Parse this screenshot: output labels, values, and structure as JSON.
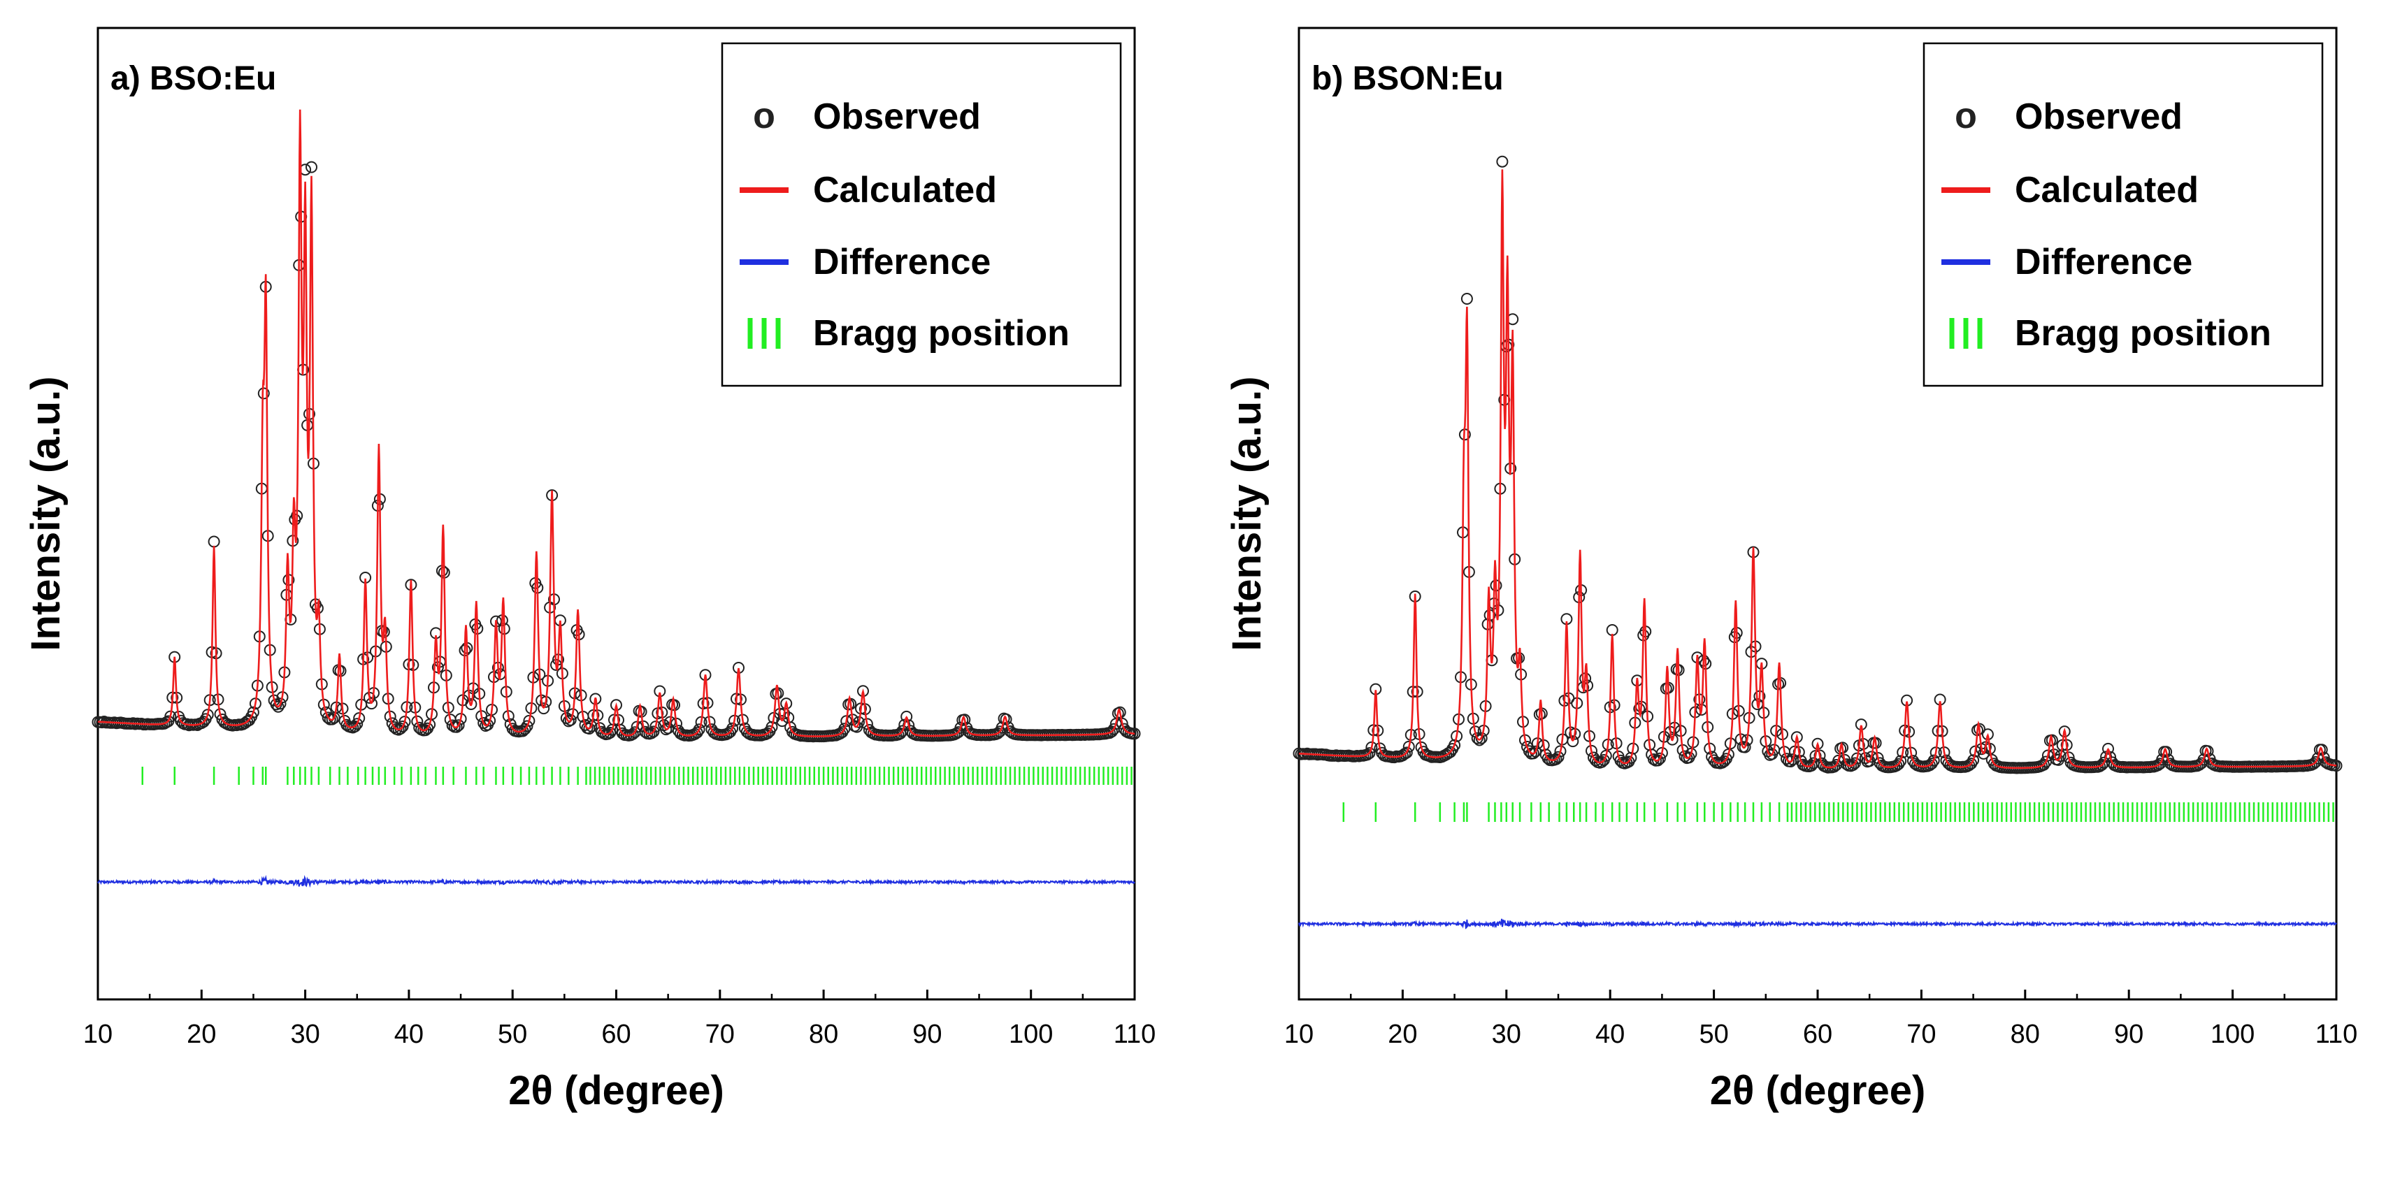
{
  "colors": {
    "observed": "#222222",
    "calculated": "#ee1c1c",
    "difference": "#1f2fe0",
    "bragg": "#22ee22",
    "axis": "#000000"
  },
  "legend": {
    "observed_marker": "o",
    "observed": "Observed",
    "calculated": "Calculated",
    "difference": "Difference",
    "bragg": "Bragg position"
  },
  "chart_data": [
    {
      "type": "line",
      "panel_label": "a) BSO:Eu",
      "xlabel": "2θ (degree)",
      "ylabel": "Intensity (a.u.)",
      "xlim": [
        10,
        110
      ],
      "xticks": [
        10,
        20,
        30,
        40,
        50,
        60,
        70,
        80,
        90,
        100,
        110
      ],
      "y_ticks_shown": false,
      "grid": false,
      "legend_position": "top-right",
      "series": [
        {
          "name": "Observed",
          "style": "open circles"
        },
        {
          "name": "Calculated",
          "style": "line"
        },
        {
          "name": "Difference",
          "style": "line",
          "offset": -0.33
        },
        {
          "name": "Bragg position",
          "style": "ticks",
          "offset": -0.08
        }
      ],
      "background_intensity": [
        [
          10,
          0.03
        ],
        [
          40,
          0.0
        ],
        [
          110,
          0.01
        ]
      ],
      "peaks": [
        {
          "x": 17.4,
          "y": 0.11
        },
        {
          "x": 21.2,
          "y": 0.29
        },
        {
          "x": 25.9,
          "y": 0.38
        },
        {
          "x": 26.2,
          "y": 0.63
        },
        {
          "x": 28.3,
          "y": 0.23
        },
        {
          "x": 28.9,
          "y": 0.26
        },
        {
          "x": 29.5,
          "y": 0.87
        },
        {
          "x": 30.0,
          "y": 0.71
        },
        {
          "x": 30.6,
          "y": 0.8
        },
        {
          "x": 31.3,
          "y": 0.14
        },
        {
          "x": 33.3,
          "y": 0.12
        },
        {
          "x": 35.8,
          "y": 0.24
        },
        {
          "x": 37.1,
          "y": 0.45
        },
        {
          "x": 37.7,
          "y": 0.15
        },
        {
          "x": 40.2,
          "y": 0.25
        },
        {
          "x": 42.6,
          "y": 0.14
        },
        {
          "x": 43.3,
          "y": 0.33
        },
        {
          "x": 45.5,
          "y": 0.17
        },
        {
          "x": 46.5,
          "y": 0.21
        },
        {
          "x": 48.4,
          "y": 0.17
        },
        {
          "x": 49.1,
          "y": 0.21
        },
        {
          "x": 52.3,
          "y": 0.29
        },
        {
          "x": 53.8,
          "y": 0.38
        },
        {
          "x": 54.6,
          "y": 0.16
        },
        {
          "x": 56.3,
          "y": 0.2
        },
        {
          "x": 58.0,
          "y": 0.06
        },
        {
          "x": 60.0,
          "y": 0.05
        },
        {
          "x": 62.3,
          "y": 0.05
        },
        {
          "x": 64.2,
          "y": 0.07
        },
        {
          "x": 65.5,
          "y": 0.06
        },
        {
          "x": 68.6,
          "y": 0.1
        },
        {
          "x": 71.8,
          "y": 0.11
        },
        {
          "x": 75.5,
          "y": 0.08
        },
        {
          "x": 76.4,
          "y": 0.05
        },
        {
          "x": 82.5,
          "y": 0.06
        },
        {
          "x": 83.8,
          "y": 0.07
        },
        {
          "x": 88.0,
          "y": 0.03
        },
        {
          "x": 93.5,
          "y": 0.03
        },
        {
          "x": 97.5,
          "y": 0.03
        },
        {
          "x": 108.5,
          "y": 0.04
        }
      ],
      "bragg_positions": [
        14.3,
        17.4,
        21.2,
        23.6,
        25.0,
        25.9,
        26.2,
        28.3,
        28.9,
        29.5,
        30.0,
        30.6,
        31.3,
        32.4,
        33.3,
        34.1,
        35.1,
        35.8,
        36.5,
        37.1,
        37.7,
        38.6,
        39.3,
        40.2,
        40.9,
        41.6,
        42.6,
        43.3,
        44.3,
        45.5,
        46.5,
        47.2,
        48.4,
        49.1,
        50.0,
        50.8,
        51.6,
        52.3,
        53.0,
        53.8,
        54.6,
        55.4,
        56.3,
        57.1
      ],
      "bragg_dense_from": 57.5,
      "bragg_dense_spacing": 0.45
    },
    {
      "type": "line",
      "panel_label": "b) BSON:Eu",
      "xlabel": "2θ (degree)",
      "ylabel": "Intensity (a.u.)",
      "xlim": [
        10,
        110
      ],
      "xticks": [
        10,
        20,
        30,
        40,
        50,
        60,
        70,
        80,
        90,
        100,
        110
      ],
      "y_ticks_shown": false,
      "grid": false,
      "legend_position": "top-right",
      "series": [
        {
          "name": "Observed",
          "style": "open circles"
        },
        {
          "name": "Calculated",
          "style": "line"
        },
        {
          "name": "Difference",
          "style": "line",
          "offset": -0.35
        },
        {
          "name": "Bragg position",
          "style": "ticks",
          "offset": -0.09
        }
      ],
      "background_intensity": [
        [
          10,
          0.03
        ],
        [
          40,
          0.0
        ],
        [
          110,
          0.01
        ]
      ],
      "peaks": [
        {
          "x": 17.4,
          "y": 0.11
        },
        {
          "x": 21.2,
          "y": 0.27
        },
        {
          "x": 25.9,
          "y": 0.36
        },
        {
          "x": 26.2,
          "y": 0.65
        },
        {
          "x": 28.3,
          "y": 0.24
        },
        {
          "x": 28.9,
          "y": 0.24
        },
        {
          "x": 29.6,
          "y": 0.86
        },
        {
          "x": 30.1,
          "y": 0.66
        },
        {
          "x": 30.6,
          "y": 0.6
        },
        {
          "x": 31.3,
          "y": 0.13
        },
        {
          "x": 33.3,
          "y": 0.1
        },
        {
          "x": 35.8,
          "y": 0.23
        },
        {
          "x": 37.1,
          "y": 0.34
        },
        {
          "x": 37.7,
          "y": 0.14
        },
        {
          "x": 40.2,
          "y": 0.22
        },
        {
          "x": 42.6,
          "y": 0.13
        },
        {
          "x": 43.3,
          "y": 0.27
        },
        {
          "x": 45.5,
          "y": 0.16
        },
        {
          "x": 46.5,
          "y": 0.19
        },
        {
          "x": 48.4,
          "y": 0.17
        },
        {
          "x": 49.1,
          "y": 0.2
        },
        {
          "x": 52.1,
          "y": 0.27
        },
        {
          "x": 53.8,
          "y": 0.35
        },
        {
          "x": 54.6,
          "y": 0.15
        },
        {
          "x": 56.3,
          "y": 0.17
        },
        {
          "x": 58.0,
          "y": 0.05
        },
        {
          "x": 60.0,
          "y": 0.04
        },
        {
          "x": 62.3,
          "y": 0.04
        },
        {
          "x": 64.2,
          "y": 0.07
        },
        {
          "x": 65.5,
          "y": 0.05
        },
        {
          "x": 68.6,
          "y": 0.11
        },
        {
          "x": 71.8,
          "y": 0.11
        },
        {
          "x": 75.5,
          "y": 0.07
        },
        {
          "x": 76.4,
          "y": 0.05
        },
        {
          "x": 82.5,
          "y": 0.05
        },
        {
          "x": 83.8,
          "y": 0.06
        },
        {
          "x": 88.0,
          "y": 0.03
        },
        {
          "x": 93.5,
          "y": 0.03
        },
        {
          "x": 97.5,
          "y": 0.03
        },
        {
          "x": 108.5,
          "y": 0.03
        }
      ],
      "bragg_positions": [
        14.3,
        17.4,
        21.2,
        23.6,
        25.0,
        25.9,
        26.2,
        28.3,
        28.9,
        29.5,
        30.0,
        30.6,
        31.3,
        32.4,
        33.3,
        34.1,
        35.1,
        35.8,
        36.5,
        37.1,
        37.7,
        38.6,
        39.3,
        40.2,
        40.9,
        41.6,
        42.6,
        43.3,
        44.3,
        45.5,
        46.5,
        47.2,
        48.4,
        49.1,
        50.0,
        50.8,
        51.6,
        52.3,
        53.0,
        53.8,
        54.6,
        55.4,
        56.3,
        57.1
      ],
      "bragg_dense_from": 57.5,
      "bragg_dense_spacing": 0.45
    }
  ]
}
